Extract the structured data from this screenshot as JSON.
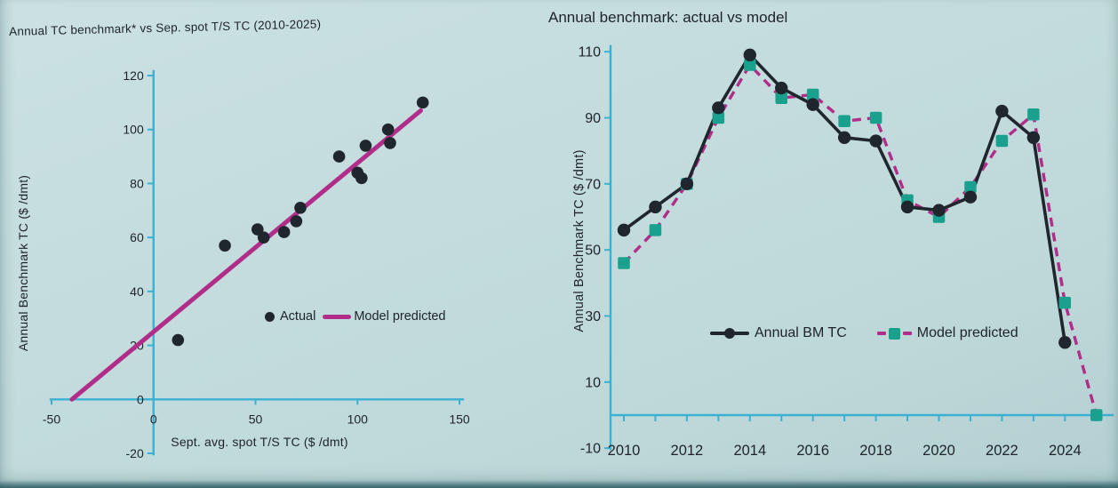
{
  "photo": {
    "left_title": "Annual TC benchmark* vs Sep. spot T/S TC (2010-2025)",
    "right_title": "Annual benchmark: actual vs model"
  },
  "colors": {
    "background": "#c2dbdc",
    "axis": "#3cb0d2",
    "magenta": "#b02e89",
    "teal": "#1aa18e",
    "series_black": "#20262e",
    "text": "#1d2329"
  },
  "chart_data": [
    {
      "type": "scatter",
      "title": "Annual TC benchmark* vs Sep. spot T/S TC (2010-2025)",
      "xlabel": "Sept. avg. spot T/S TC ($ /dmt)",
      "ylabel": "Annual Benchmark TC ($ /dmt)",
      "xlim": [
        -50,
        150
      ],
      "ylim": [
        -20,
        120
      ],
      "x_ticks": [
        -50,
        0,
        50,
        100,
        150
      ],
      "y_ticks": [
        -20,
        0,
        20,
        40,
        60,
        80,
        100,
        120
      ],
      "grid": false,
      "legend_position": "inside-center-right",
      "series": [
        {
          "name": "Actual",
          "type": "scatter",
          "points": [
            [
              12,
              22
            ],
            [
              35,
              57
            ],
            [
              51,
              63
            ],
            [
              54,
              60
            ],
            [
              64,
              62
            ],
            [
              70,
              66
            ],
            [
              72,
              71
            ],
            [
              91,
              90
            ],
            [
              100,
              84
            ],
            [
              102,
              82
            ],
            [
              104,
              94
            ],
            [
              115,
              100
            ],
            [
              116,
              95
            ],
            [
              132,
              110
            ]
          ]
        },
        {
          "name": "Model predicted",
          "type": "line",
          "points": [
            [
              -40,
              0
            ],
            [
              131,
              107
            ]
          ]
        }
      ]
    },
    {
      "type": "line",
      "title": "Annual benchmark: actual vs model",
      "xlabel": "",
      "ylabel": "Annual Benchmark TC ($ /dmt)",
      "categories": [
        2010,
        2011,
        2012,
        2013,
        2014,
        2015,
        2016,
        2017,
        2018,
        2019,
        2020,
        2021,
        2022,
        2023,
        2024,
        2025
      ],
      "x_tick_labels": [
        "2010",
        "2012",
        "2014",
        "2016",
        "2018",
        "2020",
        "2022",
        "2024"
      ],
      "ylim": [
        -10,
        110
      ],
      "y_ticks": [
        -10,
        10,
        30,
        50,
        70,
        90,
        110
      ],
      "grid": false,
      "legend_position": "inside-bottom",
      "series": [
        {
          "name": "Annual BM TC",
          "marker": "circle",
          "style": "solid",
          "values": [
            56,
            63,
            70,
            93,
            109,
            99,
            94,
            84,
            83,
            63,
            62,
            66,
            92,
            84,
            22,
            null
          ]
        },
        {
          "name": "Model predicted",
          "marker": "square",
          "style": "dashed",
          "values": [
            46,
            56,
            70,
            90,
            106,
            96,
            97,
            89,
            90,
            65,
            60,
            69,
            83,
            91,
            34,
            0
          ]
        }
      ]
    }
  ]
}
